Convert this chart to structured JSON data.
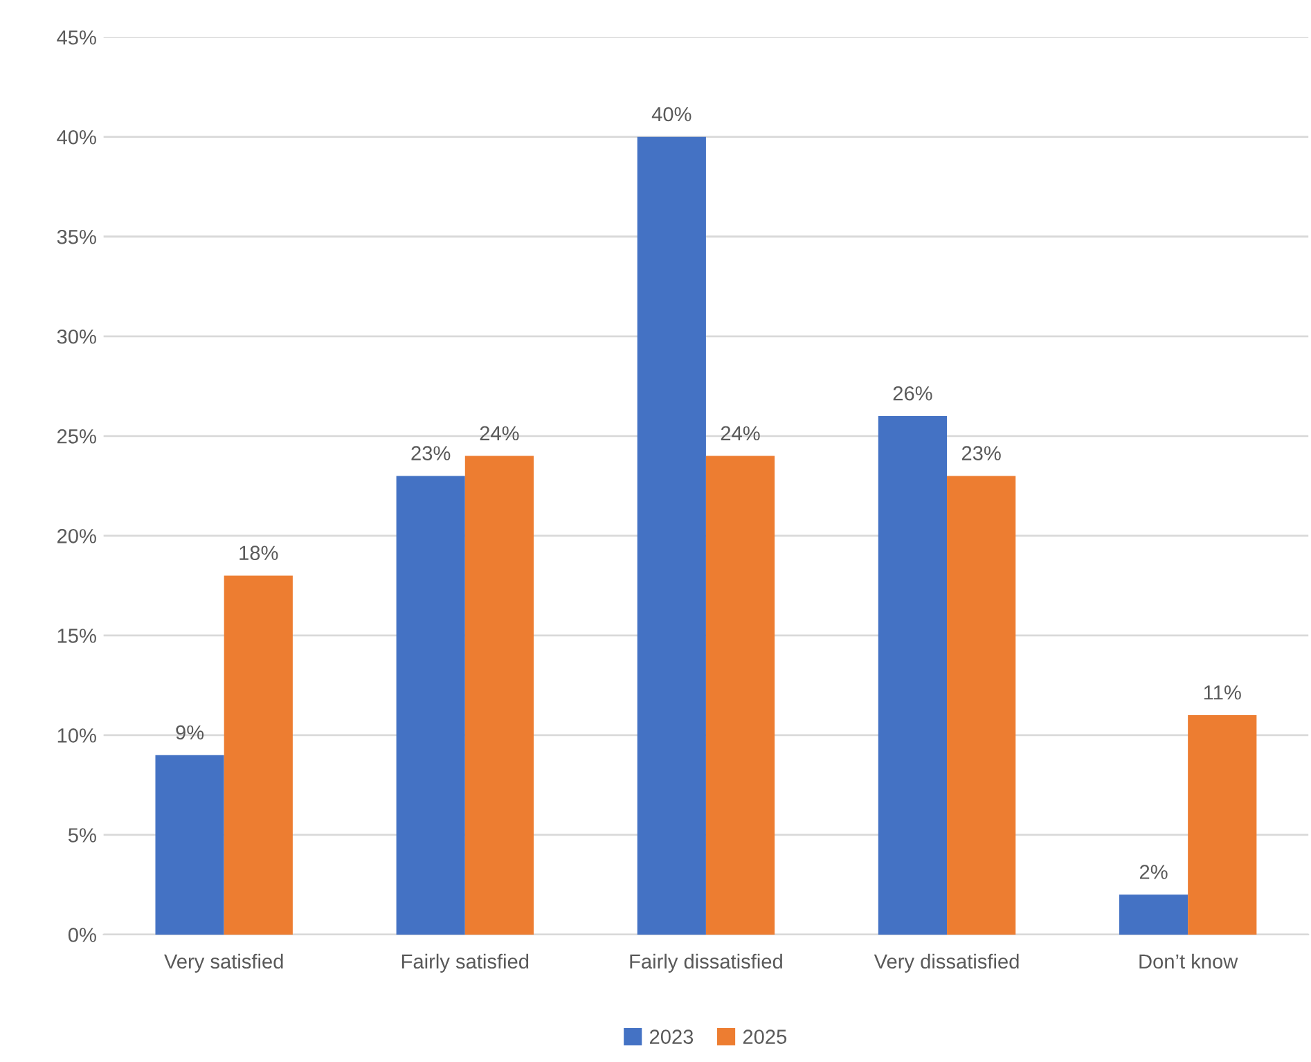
{
  "chart_data": {
    "type": "bar",
    "categories": [
      "Very satisfied",
      "Fairly satisfied",
      "Fairly dissatisfied",
      "Very dissatisfied",
      "Don’t know"
    ],
    "series": [
      {
        "name": "2023",
        "color": "#4472c4",
        "values": [
          9,
          23,
          40,
          26,
          2
        ],
        "value_labels": [
          "9%",
          "23%",
          "40%",
          "26%",
          "2%"
        ]
      },
      {
        "name": "2025",
        "color": "#ed7d31",
        "values": [
          18,
          24,
          24,
          23,
          11
        ],
        "value_labels": [
          "18%",
          "24%",
          "24%",
          "23%",
          "11%"
        ]
      }
    ],
    "ylim": [
      0,
      45
    ],
    "yticks": [
      {
        "value": 0,
        "label": "0%"
      },
      {
        "value": 5,
        "label": "5%"
      },
      {
        "value": 10,
        "label": "10%"
      },
      {
        "value": 15,
        "label": "15%"
      },
      {
        "value": 20,
        "label": "20%"
      },
      {
        "value": 25,
        "label": "25%"
      },
      {
        "value": 30,
        "label": "30%"
      },
      {
        "value": 35,
        "label": "35%"
      },
      {
        "value": 40,
        "label": "40%"
      },
      {
        "value": 45,
        "label": "45%"
      }
    ],
    "grid": "y",
    "legend": "bottom"
  }
}
